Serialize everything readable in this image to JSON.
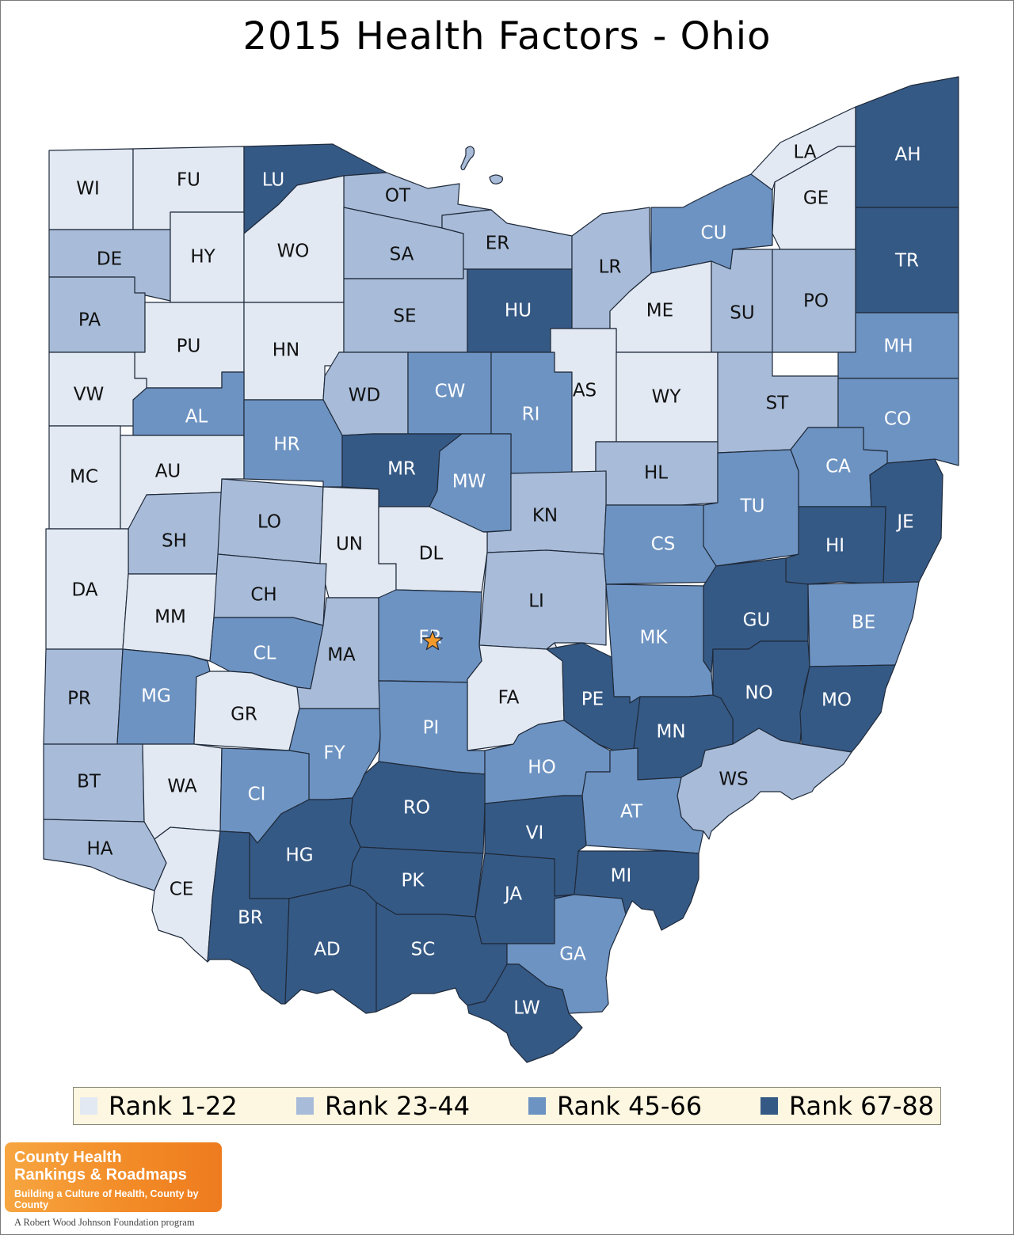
{
  "title": "2015 Health Factors - Ohio",
  "colors": {
    "rank_1_22": "#e2e9f3",
    "rank_23_44": "#a8bcd9",
    "rank_45_66": "#6d93c2",
    "rank_67_88": "#355985",
    "marker": "#f39a2b"
  },
  "legend": [
    {
      "label": "Rank 1-22",
      "class": "rank_1_22"
    },
    {
      "label": "Rank 23-44",
      "class": "rank_23_44"
    },
    {
      "label": "Rank 45-66",
      "class": "rank_45_66"
    },
    {
      "label": "Rank 67-88",
      "class": "rank_67_88"
    }
  ],
  "counties": {
    "WI": "rank_1_22",
    "FU": "rank_1_22",
    "LU": "rank_67_88",
    "OT": "rank_23_44",
    "DE": "rank_23_44",
    "HY": "rank_1_22",
    "WO": "rank_1_22",
    "SA": "rank_23_44",
    "ER": "rank_23_44",
    "PA": "rank_23_44",
    "PU": "rank_1_22",
    "HN": "rank_1_22",
    "SE": "rank_23_44",
    "HU": "rank_67_88",
    "LR": "rank_23_44",
    "CU": "rank_45_66",
    "LA": "rank_1_22",
    "GE": "rank_1_22",
    "AH": "rank_67_88",
    "TR": "rank_67_88",
    "ME": "rank_1_22",
    "SU": "rank_23_44",
    "PO": "rank_23_44",
    "MH": "rank_45_66",
    "VW": "rank_1_22",
    "AL": "rank_45_66",
    "WD": "rank_23_44",
    "CW": "rank_45_66",
    "RI": "rank_45_66",
    "AS": "rank_1_22",
    "WY": "rank_1_22",
    "ST": "rank_23_44",
    "CO": "rank_45_66",
    "MC": "rank_1_22",
    "AU": "rank_1_22",
    "HR": "rank_45_66",
    "MR": "rank_67_88",
    "MW": "rank_45_66",
    "HL": "rank_23_44",
    "CA": "rank_45_66",
    "KN": "rank_23_44",
    "TU": "rank_45_66",
    "JE": "rank_67_88",
    "SH": "rank_23_44",
    "LO": "rank_23_44",
    "UN": "rank_1_22",
    "DL": "rank_1_22",
    "CS": "rank_45_66",
    "HI": "rank_67_88",
    "DA": "rank_1_22",
    "MM": "rank_1_22",
    "CH": "rank_23_44",
    "LI": "rank_23_44",
    "GU": "rank_67_88",
    "BE": "rank_45_66",
    "CL": "rank_45_66",
    "MA": "rank_23_44",
    "FR": "rank_45_66",
    "MK": "rank_45_66",
    "PR": "rank_23_44",
    "MG": "rank_45_66",
    "GR": "rank_1_22",
    "FA": "rank_1_22",
    "PE": "rank_67_88",
    "NO": "rank_67_88",
    "MO": "rank_67_88",
    "FY": "rank_45_66",
    "PI": "rank_45_66",
    "MN": "rank_67_88",
    "BT": "rank_23_44",
    "WA": "rank_1_22",
    "CI": "rank_45_66",
    "HO": "rank_45_66",
    "WS": "rank_23_44",
    "RO": "rank_67_88",
    "AT": "rank_45_66",
    "VI": "rank_67_88",
    "HA": "rank_23_44",
    "HG": "rank_67_88",
    "PK": "rank_67_88",
    "MI": "rank_67_88",
    "CE": "rank_1_22",
    "JA": "rank_67_88",
    "BR": "rank_67_88",
    "AD": "rank_67_88",
    "SC": "rank_67_88",
    "GA": "rank_45_66",
    "LW": "rank_67_88"
  },
  "logo": {
    "name_line1": "County Health",
    "name_line2": "Rankings & Roadmaps",
    "tagline": "Building a Culture of Health, County by County",
    "footer": "A Robert Wood Johnson Foundation program"
  }
}
